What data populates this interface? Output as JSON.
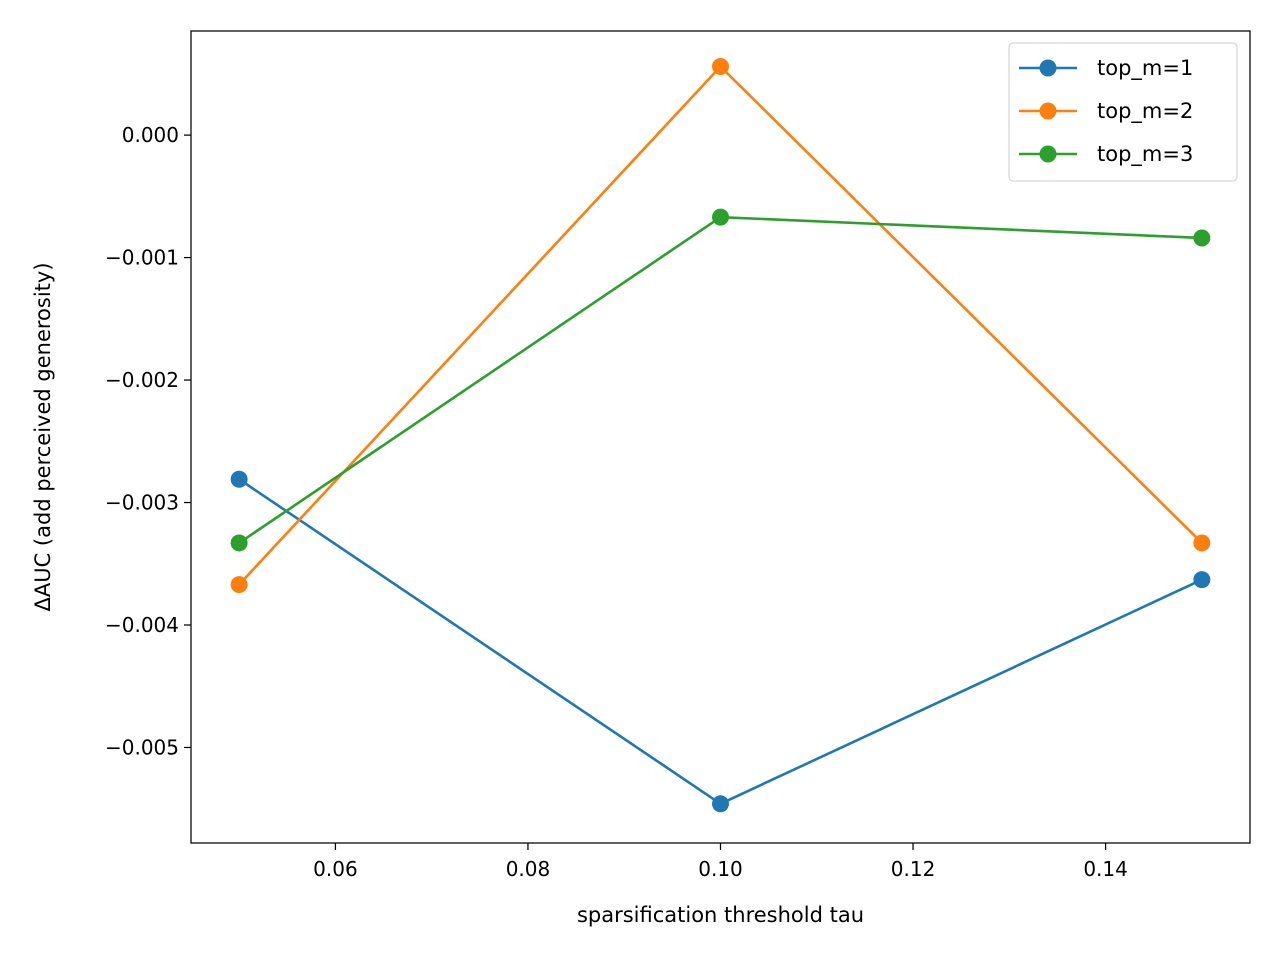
{
  "chart_data": {
    "type": "line",
    "title": "",
    "xlabel": "sparsification threshold tau",
    "ylabel": "ΔAUC (add perceived generosity)",
    "x": [
      0.05,
      0.1,
      0.15
    ],
    "xlim": [
      0.045,
      0.155
    ],
    "ylim": [
      -0.00578,
      0.00085
    ],
    "xticks": [
      0.06,
      0.08,
      0.1,
      0.12,
      0.14
    ],
    "xtick_labels": [
      "0.06",
      "0.08",
      "0.10",
      "0.12",
      "0.14"
    ],
    "yticks": [
      0.0,
      -0.001,
      -0.002,
      -0.003,
      -0.004,
      -0.005
    ],
    "ytick_labels": [
      "0.000",
      "−0.001",
      "−0.002",
      "−0.003",
      "−0.004",
      "−0.005"
    ],
    "grid": false,
    "legend_position": "top-right",
    "series": [
      {
        "name": "top_m=1",
        "color": "#1f77b4",
        "values": [
          -0.00281,
          -0.00546,
          -0.00363
        ]
      },
      {
        "name": "top_m=2",
        "color": "#ff7f0e",
        "values": [
          -0.00367,
          0.00056,
          -0.00333
        ]
      },
      {
        "name": "top_m=3",
        "color": "#2ca02c",
        "values": [
          -0.00333,
          -0.00067,
          -0.00084
        ]
      }
    ]
  }
}
